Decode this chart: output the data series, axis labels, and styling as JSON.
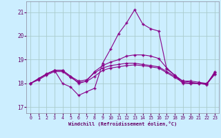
{
  "background_color": "#cceeff",
  "grid_color": "#aacccc",
  "line_color": "#880088",
  "xlabel": "Windchill (Refroidissement éolien,°C)",
  "xlim_min": -0.5,
  "xlim_max": 23.5,
  "ylim_min": 16.75,
  "ylim_max": 21.45,
  "yticks": [
    17,
    18,
    19,
    20,
    21
  ],
  "xticks": [
    0,
    1,
    2,
    3,
    4,
    5,
    6,
    7,
    8,
    9,
    10,
    11,
    12,
    13,
    14,
    15,
    16,
    17,
    18,
    19,
    20,
    21,
    22,
    23
  ],
  "hours": [
    0,
    1,
    2,
    3,
    4,
    5,
    6,
    7,
    8,
    9,
    10,
    11,
    12,
    13,
    14,
    15,
    16,
    17,
    18,
    19,
    20,
    21,
    22,
    23
  ],
  "line1_y": [
    18.0,
    18.2,
    18.4,
    18.55,
    18.0,
    17.85,
    17.5,
    17.65,
    17.8,
    18.85,
    19.45,
    20.1,
    20.55,
    21.1,
    20.5,
    20.3,
    20.2,
    18.6,
    18.35,
    18.0,
    18.0,
    18.0,
    17.95,
    18.5
  ],
  "line2_y": [
    18.0,
    18.2,
    18.4,
    18.55,
    18.55,
    18.3,
    18.0,
    18.1,
    18.5,
    18.75,
    18.9,
    19.0,
    19.15,
    19.2,
    19.2,
    19.15,
    19.05,
    18.65,
    18.35,
    18.1,
    18.1,
    18.05,
    18.0,
    18.45
  ],
  "line3_y": [
    18.0,
    18.2,
    18.4,
    18.55,
    18.55,
    18.3,
    18.1,
    18.15,
    18.45,
    18.65,
    18.75,
    18.8,
    18.85,
    18.85,
    18.8,
    18.75,
    18.7,
    18.5,
    18.3,
    18.1,
    18.05,
    18.0,
    18.0,
    18.4
  ],
  "line4_y": [
    18.0,
    18.15,
    18.35,
    18.5,
    18.5,
    18.25,
    18.05,
    18.08,
    18.3,
    18.55,
    18.65,
    18.7,
    18.75,
    18.78,
    18.75,
    18.7,
    18.65,
    18.45,
    18.25,
    18.05,
    18.0,
    18.0,
    17.97,
    18.38
  ]
}
